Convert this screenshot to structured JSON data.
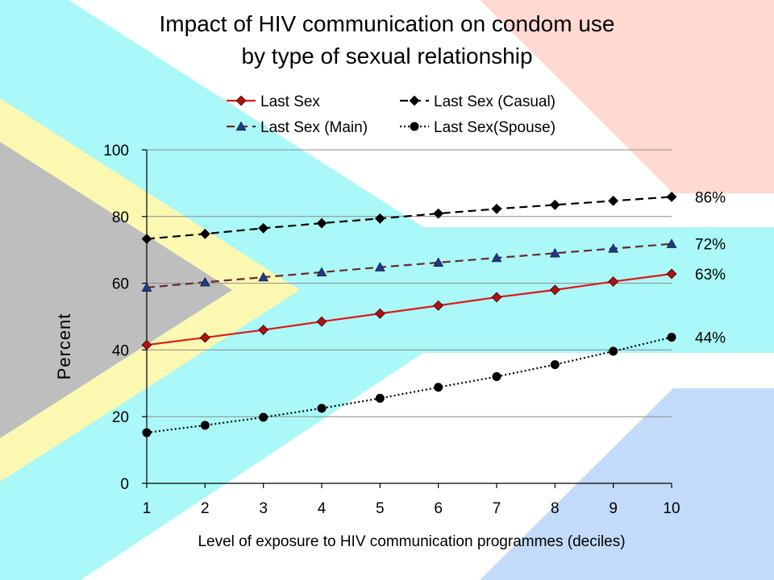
{
  "colors": {
    "flag_red": "#ffd9d2",
    "flag_blue": "#c2dbf8",
    "flag_green": "#aaf8f8",
    "flag_yellow": "#fbf8b2",
    "flag_black": "#bebebe",
    "line_last_sex": "#e01818",
    "line_main": "#6a2a2a",
    "marker_main": "#1e3a8a",
    "black": "#000000"
  },
  "chart_data": {
    "type": "line",
    "title": "Impact of HIV communication on condom use",
    "subtitle": "by type of sexual relationship",
    "xlabel": "Level of exposure to HIV communication programmes (deciles)",
    "ylabel": "Percent",
    "x": [
      1,
      2,
      3,
      4,
      5,
      6,
      7,
      8,
      9,
      10
    ],
    "xlim": [
      1,
      10
    ],
    "ylim": [
      0,
      100
    ],
    "yticks": [
      0,
      20,
      40,
      60,
      80,
      100
    ],
    "grid": true,
    "legend_position": "top",
    "series": [
      {
        "name": "Last Sex",
        "style": "solid",
        "marker": "diamond",
        "color": "#e01818",
        "values": [
          41.5,
          43.7,
          46.0,
          48.5,
          50.9,
          53.3,
          55.8,
          58.0,
          60.5,
          62.8
        ],
        "end_label": "63%"
      },
      {
        "name": "Last Sex (Casual)",
        "style": "dashed",
        "marker": "diamond",
        "color": "#000000",
        "values": [
          73.3,
          74.8,
          76.5,
          78.0,
          79.4,
          80.9,
          82.3,
          83.5,
          84.7,
          85.9
        ],
        "end_label": "86%"
      },
      {
        "name": "Last Sex (Main)",
        "style": "dashed",
        "marker": "triangle",
        "color": "#6a2a2a",
        "values": [
          58.7,
          60.3,
          61.8,
          63.3,
          64.8,
          66.2,
          67.6,
          69.0,
          70.4,
          71.8
        ],
        "end_label": "72%"
      },
      {
        "name": "Last Sex(Spouse)",
        "style": "dotted",
        "marker": "circle",
        "color": "#000000",
        "values": [
          15.2,
          17.4,
          19.8,
          22.5,
          25.5,
          28.8,
          32.0,
          35.6,
          39.6,
          43.8
        ],
        "end_label": "44%"
      }
    ]
  }
}
